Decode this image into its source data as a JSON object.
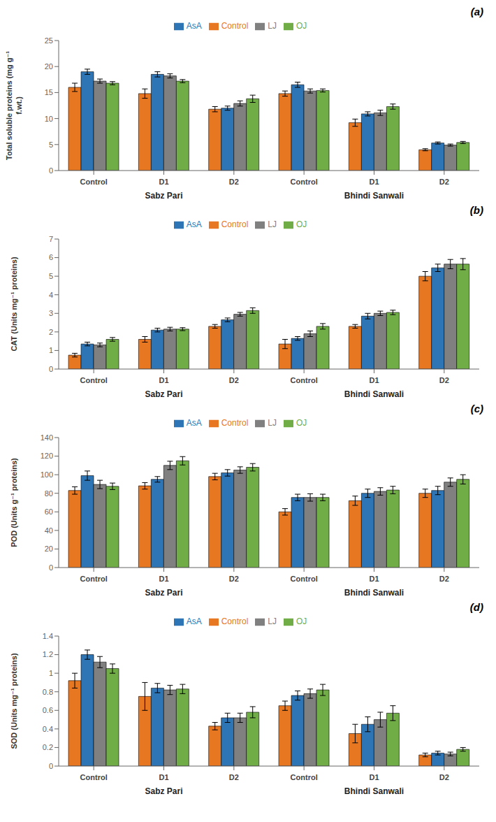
{
  "chart_data": [
    {
      "type": "bar",
      "title": "(a)",
      "ylabel": "Total soluble proteins (mg g⁻¹\nf.wt.)",
      "categories": [
        "Control",
        "D1",
        "D2",
        "Control",
        "D1",
        "D2"
      ],
      "annotations": [
        "Sabz Pari",
        "Bhindi Sanwali"
      ],
      "series": [
        {
          "name": "Control",
          "color": "#E87722",
          "values": [
            16.0,
            14.8,
            11.8,
            14.8,
            9.2,
            4.0
          ],
          "errors": [
            0.8,
            0.9,
            0.5,
            0.5,
            0.7,
            0.2
          ]
        },
        {
          "name": "AsA",
          "color": "#2E75B6",
          "values": [
            19.0,
            18.5,
            12.0,
            16.5,
            10.9,
            5.3
          ],
          "errors": [
            0.5,
            0.5,
            0.4,
            0.5,
            0.4,
            0.2
          ]
        },
        {
          "name": "LJ",
          "color": "#808080",
          "values": [
            17.2,
            18.2,
            12.9,
            15.3,
            11.1,
            4.9
          ],
          "errors": [
            0.4,
            0.4,
            0.5,
            0.4,
            0.5,
            0.2
          ]
        },
        {
          "name": "OJ",
          "color": "#70AD47",
          "values": [
            16.8,
            17.2,
            13.8,
            15.4,
            12.3,
            5.4
          ],
          "errors": [
            0.3,
            0.3,
            0.7,
            0.3,
            0.5,
            0.2
          ]
        }
      ],
      "ylim": [
        0,
        25
      ],
      "yticks": [
        0,
        5,
        10,
        15,
        20,
        25
      ],
      "grid": false,
      "legend": "top"
    },
    {
      "type": "bar",
      "title": "(b)",
      "ylabel": "CAT (Units mg⁻¹ proteins)",
      "categories": [
        "Control",
        "D1",
        "D2",
        "Control",
        "D1",
        "D2"
      ],
      "annotations": [
        "Sabz Pari",
        "Bhindi Sanwali"
      ],
      "series": [
        {
          "name": "Control",
          "color": "#E87722",
          "values": [
            0.75,
            1.6,
            2.3,
            1.35,
            2.3,
            5.0
          ],
          "errors": [
            0.1,
            0.15,
            0.1,
            0.25,
            0.1,
            0.25
          ]
        },
        {
          "name": "AsA",
          "color": "#2E75B6",
          "values": [
            1.35,
            2.1,
            2.65,
            1.65,
            2.85,
            5.45
          ],
          "errors": [
            0.1,
            0.1,
            0.1,
            0.1,
            0.15,
            0.2
          ]
        },
        {
          "name": "LJ",
          "color": "#808080",
          "values": [
            1.3,
            2.15,
            2.95,
            1.9,
            3.0,
            5.65
          ],
          "errors": [
            0.1,
            0.1,
            0.1,
            0.15,
            0.12,
            0.25
          ]
        },
        {
          "name": "OJ",
          "color": "#70AD47",
          "values": [
            1.6,
            2.15,
            3.15,
            2.3,
            3.05,
            5.65
          ],
          "errors": [
            0.1,
            0.08,
            0.15,
            0.15,
            0.12,
            0.3
          ]
        }
      ],
      "ylim": [
        0,
        7
      ],
      "yticks": [
        0,
        1,
        2,
        3,
        4,
        5,
        6,
        7
      ],
      "grid": false,
      "legend": "top"
    },
    {
      "type": "bar",
      "title": "(c)",
      "ylabel": "POD (Units g⁻¹ proteins)",
      "categories": [
        "Control",
        "D1",
        "D2",
        "Control",
        "D1",
        "D2"
      ],
      "annotations": [
        "Sabz Pari",
        "Bhindi Sanwali"
      ],
      "series": [
        {
          "name": "Control",
          "color": "#E87722",
          "values": [
            83.0,
            88.0,
            98.0,
            60.0,
            72.0,
            80.0
          ],
          "errors": [
            4.0,
            3.5,
            3.5,
            3.5,
            5.0,
            4.5
          ]
        },
        {
          "name": "AsA",
          "color": "#2E75B6",
          "values": [
            99.0,
            95.0,
            102.0,
            75.5,
            80.0,
            83.0
          ],
          "errors": [
            5.0,
            3.0,
            3.5,
            3.5,
            4.5,
            4.5
          ]
        },
        {
          "name": "LJ",
          "color": "#808080",
          "values": [
            89.5,
            110.0,
            105.0,
            75.5,
            82.0,
            92.0
          ],
          "errors": [
            4.5,
            4.5,
            3.5,
            4.0,
            4.0,
            4.5
          ]
        },
        {
          "name": "OJ",
          "color": "#70AD47",
          "values": [
            87.5,
            115.0,
            108.0,
            75.5,
            83.5,
            95.0
          ],
          "errors": [
            3.5,
            4.5,
            4.0,
            3.5,
            4.0,
            5.0
          ]
        }
      ],
      "ylim": [
        0,
        140
      ],
      "yticks": [
        0,
        20,
        40,
        60,
        80,
        100,
        120,
        140
      ],
      "grid": false,
      "legend": "top"
    },
    {
      "type": "bar",
      "title": "(d)",
      "ylabel": "SOD (Units mg⁻¹ proteins)",
      "categories": [
        "Control",
        "D1",
        "D2",
        "Control",
        "D1",
        "D2"
      ],
      "annotations": [
        "Sabz Pari",
        "Bhindi Sanwali"
      ],
      "series": [
        {
          "name": "Control",
          "color": "#E87722",
          "values": [
            0.92,
            0.75,
            0.43,
            0.65,
            0.35,
            0.12
          ],
          "errors": [
            0.08,
            0.15,
            0.04,
            0.05,
            0.1,
            0.02
          ]
        },
        {
          "name": "AsA",
          "color": "#2E75B6",
          "values": [
            1.2,
            0.84,
            0.52,
            0.76,
            0.45,
            0.14
          ],
          "errors": [
            0.05,
            0.05,
            0.05,
            0.05,
            0.08,
            0.02
          ]
        },
        {
          "name": "LJ",
          "color": "#808080",
          "values": [
            1.12,
            0.82,
            0.52,
            0.78,
            0.5,
            0.13
          ],
          "errors": [
            0.06,
            0.05,
            0.05,
            0.05,
            0.08,
            0.02
          ]
        },
        {
          "name": "OJ",
          "color": "#70AD47",
          "values": [
            1.05,
            0.83,
            0.58,
            0.82,
            0.57,
            0.18
          ],
          "errors": [
            0.05,
            0.05,
            0.06,
            0.06,
            0.08,
            0.02
          ]
        }
      ],
      "ylim": [
        0,
        1.4
      ],
      "yticks": [
        0.0,
        0.2,
        0.4,
        0.6,
        0.8,
        1.0,
        1.2,
        1.4
      ],
      "grid": false,
      "legend": "top"
    }
  ]
}
